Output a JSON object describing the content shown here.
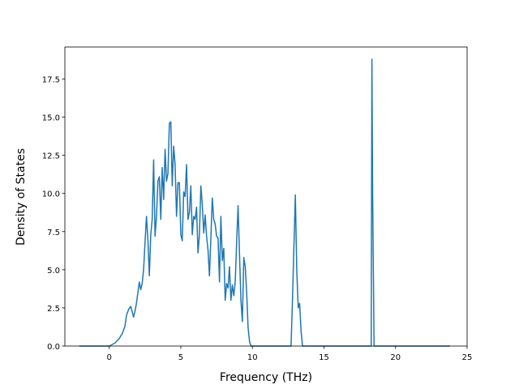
{
  "chart_data": {
    "type": "line",
    "title": "",
    "xlabel": "Frequency (THz)",
    "ylabel": "Density of States",
    "xlim": [
      -3.1,
      25.0
    ],
    "ylim": [
      0,
      19.6
    ],
    "xticks": [
      0,
      5,
      10,
      15,
      20,
      25
    ],
    "xtick_labels": [
      "0",
      "5",
      "10",
      "15",
      "20",
      "25"
    ],
    "yticks": [
      0,
      2.5,
      5,
      7.5,
      10,
      12.5,
      15,
      17.5
    ],
    "ytick_labels": [
      "0.0",
      "2.5",
      "5.0",
      "7.5",
      "10.0",
      "12.5",
      "15.0",
      "17.5"
    ],
    "grid": false,
    "legend": "none",
    "line_color": "#1f77b4",
    "series": [
      {
        "x": [
          -2.1,
          -1.0,
          0.0,
          0.4,
          0.7,
          0.9,
          1.1,
          1.2,
          1.35,
          1.5,
          1.7,
          1.8,
          1.9,
          2.0,
          2.1,
          2.2,
          2.3,
          2.4,
          2.5,
          2.6,
          2.7,
          2.8,
          2.9,
          3.0,
          3.1,
          3.2,
          3.3,
          3.4,
          3.5,
          3.6,
          3.7,
          3.8,
          3.9,
          4.0,
          4.1,
          4.2,
          4.3,
          4.4,
          4.5,
          4.6,
          4.7,
          4.8,
          4.9,
          5.0,
          5.1,
          5.2,
          5.3,
          5.4,
          5.5,
          5.6,
          5.7,
          5.8,
          5.9,
          6.0,
          6.1,
          6.2,
          6.3,
          6.4,
          6.5,
          6.6,
          6.7,
          6.8,
          6.9,
          7.0,
          7.1,
          7.2,
          7.3,
          7.4,
          7.5,
          7.6,
          7.7,
          7.8,
          7.9,
          8.0,
          8.1,
          8.2,
          8.3,
          8.4,
          8.5,
          8.6,
          8.7,
          8.8,
          8.9,
          9.0,
          9.1,
          9.2,
          9.3,
          9.4,
          9.5,
          9.6,
          9.7,
          9.8,
          9.9,
          10.0,
          10.1,
          10.2,
          10.3,
          10.4,
          10.5,
          10.6,
          10.7,
          10.8,
          10.9,
          11.0,
          11.1,
          11.2,
          11.3,
          11.4,
          11.5,
          12.0,
          12.5,
          12.7,
          12.8,
          12.9,
          13.0,
          13.1,
          13.2,
          13.3,
          13.4,
          13.5,
          14.0,
          16.0,
          18.0,
          18.2,
          18.3,
          18.35,
          18.4,
          18.5,
          18.6,
          19.0,
          21.0,
          23.8
        ],
        "y": [
          0,
          0,
          0,
          0.2,
          0.5,
          0.8,
          1.3,
          2.0,
          2.4,
          2.6,
          1.9,
          2.3,
          2.8,
          3.5,
          4.2,
          3.7,
          4.1,
          5.0,
          6.8,
          8.5,
          7.0,
          4.6,
          7.3,
          8.3,
          12.2,
          7.2,
          8.5,
          10.8,
          11.1,
          8.3,
          11.7,
          9.6,
          12.9,
          10.8,
          11.3,
          14.6,
          14.7,
          10.5,
          13.1,
          11.9,
          8.5,
          10.7,
          10.7,
          7.3,
          6.9,
          10.1,
          9.8,
          11.9,
          8.3,
          8.8,
          10.5,
          7.3,
          8.5,
          8.3,
          9.1,
          6.1,
          7.3,
          10.5,
          9.3,
          7.4,
          8.6,
          7.2,
          6.3,
          4.6,
          7.1,
          9.7,
          8.3,
          8.0,
          7.2,
          7.1,
          4.2,
          8.5,
          5.6,
          6.4,
          3.0,
          4.1,
          3.8,
          5.2,
          3.0,
          4.0,
          3.3,
          4.2,
          6.8,
          9.2,
          6.0,
          3.0,
          1.6,
          5.8,
          5.2,
          3.5,
          1.2,
          0.3,
          0,
          0,
          0,
          0,
          0,
          0,
          0,
          0,
          0,
          0,
          0,
          0,
          0,
          0,
          0,
          0,
          0,
          0,
          0,
          0,
          3.0,
          6.5,
          9.9,
          5.0,
          2.5,
          2.8,
          1.0,
          0,
          0,
          0,
          0,
          0,
          0,
          18.8,
          10.0,
          0,
          0,
          0,
          0,
          0
        ]
      }
    ]
  }
}
